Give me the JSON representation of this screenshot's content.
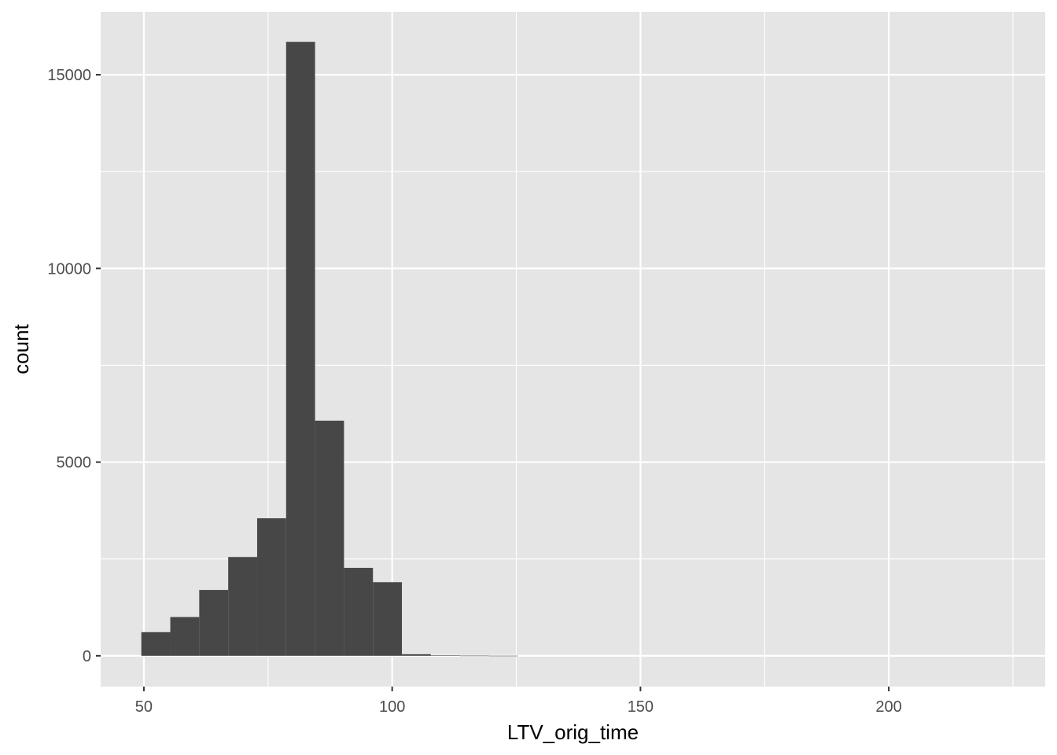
{
  "chart_data": {
    "type": "bar",
    "subtype": "histogram",
    "title": "",
    "xlabel": "LTV_orig_time",
    "ylabel": "count",
    "xlim": [
      41.3,
      231.5
    ],
    "ylim": [
      -795,
      16625
    ],
    "x_ticks": [
      50,
      100,
      150,
      200
    ],
    "x_tick_labels": [
      "50",
      "100",
      "150",
      "200"
    ],
    "y_ticks": [
      0,
      5000,
      10000,
      15000
    ],
    "y_tick_labels": [
      "0",
      "5000",
      "10000",
      "15000"
    ],
    "bin_width": 5.83,
    "bins": [
      {
        "x0": 49.49,
        "x1": 55.32,
        "count": 610
      },
      {
        "x0": 55.32,
        "x1": 61.15,
        "count": 1000
      },
      {
        "x0": 61.15,
        "x1": 66.98,
        "count": 1700
      },
      {
        "x0": 66.98,
        "x1": 72.81,
        "count": 2550
      },
      {
        "x0": 72.81,
        "x1": 78.64,
        "count": 3550
      },
      {
        "x0": 78.64,
        "x1": 84.47,
        "count": 15850
      },
      {
        "x0": 84.47,
        "x1": 90.3,
        "count": 6070
      },
      {
        "x0": 90.3,
        "x1": 96.13,
        "count": 2270
      },
      {
        "x0": 96.13,
        "x1": 101.96,
        "count": 1900
      },
      {
        "x0": 101.96,
        "x1": 107.79,
        "count": 40
      },
      {
        "x0": 107.79,
        "x1": 113.62,
        "count": 12
      },
      {
        "x0": 113.62,
        "x1": 119.45,
        "count": 5
      },
      {
        "x0": 119.45,
        "x1": 125.28,
        "count": 2
      }
    ],
    "grid": true,
    "legend": "none",
    "colors": {
      "panel": "#e5e5e5",
      "grid": "#ffffff",
      "bar": "#474747",
      "tick_text": "#4d4d4d",
      "tick_mark": "#333333",
      "axis_title": "#000000"
    }
  }
}
